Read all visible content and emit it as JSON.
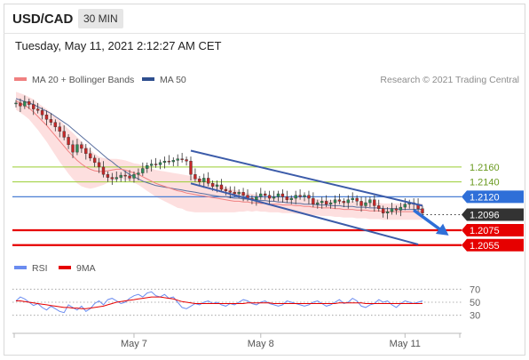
{
  "header": {
    "pair": "USD/CAD",
    "timeframe": "30 MIN"
  },
  "datetime": "Tuesday, May 11, 2021 2:12:27 AM CET",
  "chart_data": [
    {
      "type": "line",
      "legend": [
        {
          "name": "MA 20 + Bollinger Bands",
          "color": "#f08080"
        },
        {
          "name": "MA 50",
          "color": "#2f4f8f"
        }
      ],
      "credit": "Research © 2021 Trading Central",
      "ylim": [
        1.2038,
        1.2265
      ],
      "x_ticks": [
        {
          "label": "May 7",
          "i": 27
        },
        {
          "label": "May 8",
          "i": 56
        },
        {
          "label": "May 11",
          "i": 89
        }
      ],
      "series": [
        {
          "name": "Price",
          "values": [
            1.2246,
            1.2242,
            1.2248,
            1.2244,
            1.2238,
            1.2236,
            1.223,
            1.2224,
            1.222,
            1.2214,
            1.2208,
            1.22,
            1.219,
            1.218,
            1.219,
            1.2185,
            1.2178,
            1.2172,
            1.2166,
            1.216,
            1.215,
            1.2146,
            1.2144,
            1.2146,
            1.2149,
            1.2148,
            1.2145,
            1.215,
            1.2152,
            1.2158,
            1.2162,
            1.2164,
            1.2163,
            1.2166,
            1.2168,
            1.2167,
            1.2169,
            1.2171,
            1.217,
            1.2168,
            1.215,
            1.2144,
            1.214,
            1.2145,
            1.2138,
            1.2134,
            1.2136,
            1.213,
            1.2128,
            1.2126,
            1.2124,
            1.2126,
            1.2122,
            1.2118,
            1.2116,
            1.212,
            1.2124,
            1.2122,
            1.2118,
            1.212,
            1.2124,
            1.212,
            1.2116,
            1.2118,
            1.2122,
            1.212,
            1.2122,
            1.2118,
            1.211,
            1.2112,
            1.2114,
            1.211,
            1.2112,
            1.2116,
            1.2114,
            1.2112,
            1.2116,
            1.2118,
            1.2114,
            1.2108,
            1.2112,
            1.2116,
            1.2108,
            1.2104,
            1.2098,
            1.21,
            1.2104,
            1.2102,
            1.2106,
            1.211,
            1.2112,
            1.211,
            1.2104,
            1.2098
          ]
        },
        {
          "name": "MA 20",
          "values": [
            1.2249,
            1.2246,
            1.2243,
            1.2239,
            1.2234,
            1.2228,
            1.2222,
            1.2216,
            1.2209,
            1.2202,
            1.2195,
            1.2188,
            1.2181,
            1.2175,
            1.2169,
            1.2164,
            1.216,
            1.2157,
            1.2155,
            1.2154,
            1.2154,
            1.2155,
            1.2156,
            1.2157,
            1.2157,
            1.2156,
            1.2154,
            1.2152,
            1.215,
            1.2147,
            1.2144,
            1.2141,
            1.2138,
            1.2136,
            1.2134,
            1.2132,
            1.213,
            1.2128,
            1.2127,
            1.2125,
            1.2124,
            1.2123,
            1.2122,
            1.2121,
            1.212,
            1.2119,
            1.2118,
            1.2117,
            1.2116,
            1.2115,
            1.2114,
            1.2114,
            1.2113,
            1.2113,
            1.2112,
            1.2112,
            1.2111,
            1.2111,
            1.211,
            1.211,
            1.211,
            1.2109,
            1.2109,
            1.2109,
            1.2108,
            1.2108,
            1.2107,
            1.2107,
            1.2106,
            1.2106,
            1.2105,
            1.2105,
            1.2105,
            1.2104,
            1.2104,
            1.2103,
            1.2103,
            1.2103,
            1.2102,
            1.2102,
            1.2102,
            1.2101,
            1.2101,
            1.2101,
            1.21,
            1.21,
            1.21,
            1.21,
            1.21,
            1.21,
            1.21,
            1.21,
            1.21,
            1.21
          ]
        },
        {
          "name": "MA 50",
          "values": [
            1.2252,
            1.225,
            1.2248,
            1.2246,
            1.2244,
            1.2241,
            1.2238,
            1.2235,
            1.2232,
            1.2228,
            1.2224,
            1.222,
            1.2216,
            1.2211,
            1.2206,
            1.2201,
            1.2196,
            1.2191,
            1.2186,
            1.2181,
            1.2176,
            1.2171,
            1.2167,
            1.2162,
            1.2158,
            1.2154,
            1.215,
            1.2147,
            1.2144,
            1.2141,
            1.2139,
            1.2137,
            1.2135,
            1.2134,
            1.2133,
            1.2132,
            1.2131,
            1.213,
            1.2129,
            1.2128,
            1.2127,
            1.2126,
            1.2125,
            1.2124,
            1.2123,
            1.2122,
            1.2121,
            1.212,
            1.212,
            1.2119,
            1.2118,
            1.2118,
            1.2117,
            1.2117,
            1.2116,
            1.2116,
            1.2115,
            1.2115,
            1.2114,
            1.2114,
            1.2113,
            1.2113,
            1.2112,
            1.2112,
            1.2111,
            1.2111,
            1.211,
            1.211,
            1.211,
            1.2109,
            1.2109,
            1.2109,
            1.2108,
            1.2108,
            1.2108,
            1.2107,
            1.2107,
            1.2107,
            1.2106,
            1.2106,
            1.2106,
            1.2105,
            1.2105,
            1.2105,
            1.2104,
            1.2104,
            1.2104,
            1.2104,
            1.2103,
            1.2103,
            1.2103,
            1.2103,
            1.2103,
            1.2103
          ]
        }
      ],
      "bollinger_halfwidth": [
        0.0012,
        0.0013,
        0.0014,
        0.0015,
        0.0017,
        0.0018,
        0.002,
        0.0022,
        0.0024,
        0.0026,
        0.0028,
        0.0029,
        0.003,
        0.0031,
        0.0031,
        0.003,
        0.0028,
        0.0026,
        0.0023,
        0.002,
        0.0018,
        0.0016,
        0.0015,
        0.0014,
        0.0013,
        0.0013,
        0.0013,
        0.0013,
        0.0014,
        0.0015,
        0.0016,
        0.0017,
        0.0018,
        0.0019,
        0.002,
        0.0021,
        0.0022,
        0.0023,
        0.0023,
        0.0024,
        0.0024,
        0.0024,
        0.0023,
        0.0022,
        0.0021,
        0.002,
        0.0019,
        0.0018,
        0.0017,
        0.0016,
        0.0015,
        0.0014,
        0.0013,
        0.0012,
        0.0012,
        0.0011,
        0.0011,
        0.0011,
        0.0011,
        0.0011,
        0.0011,
        0.0011,
        0.0011,
        0.0011,
        0.0011,
        0.0011,
        0.0011,
        0.0011,
        0.0011,
        0.0011,
        0.0011,
        0.0011,
        0.0011,
        0.0011,
        0.0011,
        0.0011,
        0.0011,
        0.0011,
        0.0011,
        0.0011,
        0.0011,
        0.0011,
        0.0011,
        0.0011,
        0.0011,
        0.0011,
        0.0011,
        0.0011,
        0.0011,
        0.0011,
        0.0011,
        0.0011,
        0.0011,
        0.0011
      ],
      "levels": [
        {
          "label": "1.2160",
          "value": 1.216,
          "color": "#9acd32",
          "style": "thin",
          "text_color": "#6a9a1f",
          "tag": false
        },
        {
          "label": "1.2140",
          "value": 1.214,
          "color": "#9acd32",
          "style": "thin",
          "text_color": "#6a9a1f",
          "tag": false
        },
        {
          "label": "1.2120",
          "value": 1.212,
          "color": "#4a7fd4",
          "style": "line",
          "text_color": "#ffffff",
          "tag": true,
          "tag_color": "#2f6fd8"
        },
        {
          "label": "1.2096",
          "value": 1.2096,
          "color": "#333333",
          "style": "dotted",
          "text_color": "#ffffff",
          "tag": true,
          "tag_color": "#333333"
        },
        {
          "label": "1.2075",
          "value": 1.2075,
          "color": "#e60000",
          "style": "thick",
          "text_color": "#ffffff",
          "tag": true,
          "tag_color": "#e60000"
        },
        {
          "label": "1.2055",
          "value": 1.2055,
          "color": "#e60000",
          "style": "thick",
          "text_color": "#ffffff",
          "tag": true,
          "tag_color": "#e60000"
        }
      ],
      "channel": {
        "upper": [
          {
            "i": 40,
            "v": 1.2182
          },
          {
            "i": 93,
            "v": 1.2108
          }
        ],
        "lower": [
          {
            "i": 40,
            "v": 1.2138
          },
          {
            "i": 92,
            "v": 1.2056
          }
        ],
        "color": "#3b5ba9"
      },
      "projection": {
        "from": {
          "i": 91,
          "v": 1.2102
        },
        "to": {
          "i": 99,
          "v": 1.2068
        },
        "color": "#2f6fd8"
      }
    },
    {
      "type": "line",
      "legend": [
        {
          "name": "RSI",
          "color": "#6b8cf0"
        },
        {
          "name": "9MA",
          "color": "#e60000"
        }
      ],
      "ylim": [
        20,
        80
      ],
      "y_ticks": [
        70,
        50,
        30
      ],
      "series": [
        {
          "name": "RSI",
          "values": [
            52,
            58,
            55,
            50,
            45,
            48,
            42,
            38,
            44,
            40,
            36,
            34,
            46,
            42,
            38,
            44,
            36,
            40,
            48,
            52,
            46,
            54,
            56,
            52,
            48,
            50,
            56,
            60,
            62,
            58,
            64,
            66,
            60,
            58,
            62,
            56,
            58,
            50,
            42,
            40,
            44,
            48,
            46,
            50,
            52,
            48,
            50,
            46,
            44,
            48,
            46,
            50,
            54,
            52,
            48,
            46,
            50,
            52,
            48,
            46,
            44,
            46,
            52,
            50,
            48,
            46,
            44,
            46,
            50,
            52,
            48,
            44,
            46,
            50,
            54,
            48,
            50,
            56,
            52,
            44,
            42,
            46,
            48,
            54,
            50,
            52,
            46,
            42,
            48,
            52,
            50,
            48,
            50,
            52
          ]
        },
        {
          "name": "9MA",
          "values": [
            52,
            52,
            51,
            50,
            49,
            48,
            47,
            46,
            45,
            44,
            43,
            42,
            42,
            41,
            41,
            40,
            40,
            41,
            42,
            43,
            44,
            46,
            48,
            50,
            51,
            52,
            53,
            54,
            55,
            56,
            57,
            58,
            58,
            58,
            57,
            56,
            55,
            53,
            51,
            50,
            49,
            48,
            48,
            48,
            48,
            48,
            48,
            48,
            48,
            48,
            48,
            48,
            48,
            49,
            49,
            49,
            49,
            49,
            49,
            48,
            48,
            48,
            48,
            48,
            48,
            48,
            48,
            48,
            48,
            48,
            48,
            48,
            48,
            48,
            49,
            49,
            49,
            49,
            49,
            49,
            48,
            48,
            48,
            48,
            48,
            48,
            48,
            48,
            48,
            48,
            48,
            48,
            48,
            48
          ]
        }
      ]
    }
  ]
}
